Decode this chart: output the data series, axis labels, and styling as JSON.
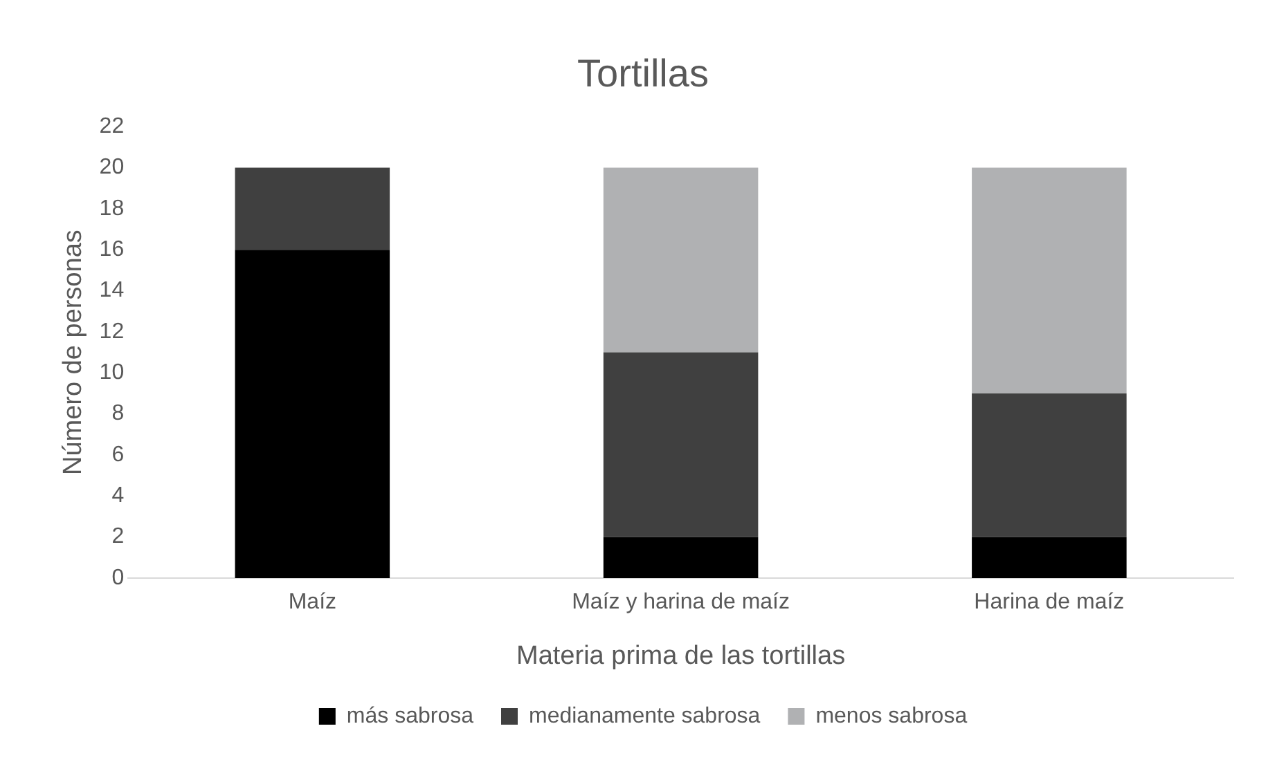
{
  "chart_data": {
    "type": "bar",
    "title": "Tortillas",
    "xlabel": "Materia prima de las tortillas",
    "ylabel": "Número de personas",
    "categories": [
      "Maíz",
      "Maíz y harina de maíz",
      "Harina de maíz"
    ],
    "stacked": true,
    "series": [
      {
        "name": "más sabrosa",
        "color": "#000000",
        "values": [
          16,
          2,
          2
        ]
      },
      {
        "name": "medianamente sabrosa",
        "color": "#404040",
        "values": [
          4,
          9,
          7
        ]
      },
      {
        "name": "menos sabrosa",
        "color": "#b0b1b3",
        "values": [
          0,
          9,
          11
        ]
      }
    ],
    "ylim": [
      0,
      22
    ],
    "yticks": [
      0,
      2,
      4,
      6,
      8,
      10,
      12,
      14,
      16,
      18,
      20,
      22
    ],
    "grid": false,
    "legend": "bottom"
  }
}
